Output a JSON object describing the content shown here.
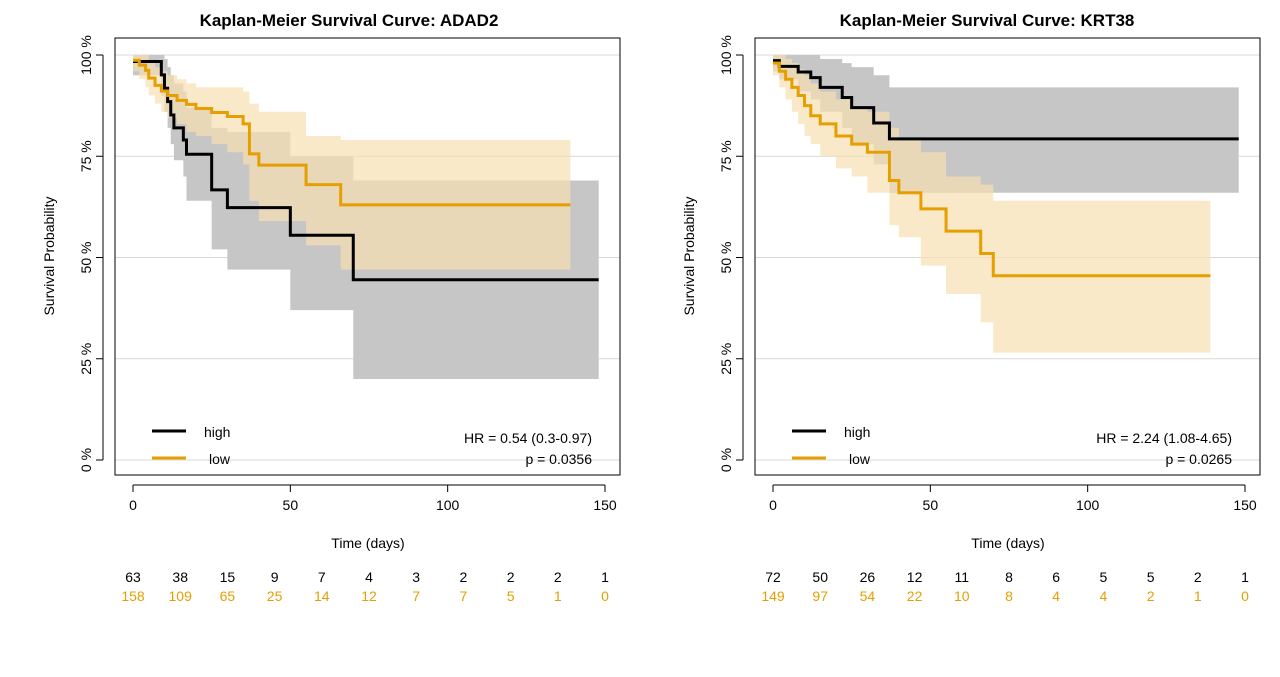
{
  "colors": {
    "high": "#000000",
    "low": "#E69F00",
    "high_ci": "#C6C6C6",
    "low_ci": "#F7E0B0",
    "grid": "#D9D9D9"
  },
  "chart_data": [
    {
      "type": "line",
      "title": "Kaplan-Meier Survival Curve: ADAD2",
      "xlabel": "Time (days)",
      "ylabel": "Survival Probability",
      "xlim": [
        0,
        150
      ],
      "ylim": [
        0,
        1
      ],
      "xticks": [
        "0",
        "50",
        "100",
        "150"
      ],
      "yticks": [
        "0 %",
        "25 %",
        "50 %",
        "75 %",
        "100 %"
      ],
      "legend_position": "bottom-left",
      "legend": [
        "high",
        "low"
      ],
      "hr_text": "HR = 0.54 (0.3-0.97)",
      "p_text": "p = 0.0356",
      "series": [
        {
          "name": "high",
          "x": [
            0,
            6,
            9,
            10,
            11,
            12,
            13,
            16,
            17,
            24,
            25,
            30,
            50,
            70,
            148
          ],
          "y": [
            0.984,
            0.984,
            0.951,
            0.918,
            0.885,
            0.852,
            0.82,
            0.79,
            0.755,
            0.755,
            0.667,
            0.623,
            0.555,
            0.445,
            0.445
          ],
          "ci_lower": [
            0.95,
            0.95,
            0.9,
            0.86,
            0.82,
            0.78,
            0.74,
            0.7,
            0.64,
            0.64,
            0.52,
            0.47,
            0.37,
            0.2,
            0.2
          ],
          "ci_upper": [
            1.0,
            1.0,
            1.0,
            0.99,
            0.97,
            0.95,
            0.93,
            0.91,
            0.87,
            0.87,
            0.82,
            0.81,
            0.75,
            0.69,
            0.69
          ]
        },
        {
          "name": "low",
          "x": [
            0,
            2,
            4,
            5,
            7,
            9,
            11,
            14,
            17,
            20,
            25,
            30,
            35,
            37,
            40,
            55,
            66,
            139
          ],
          "y": [
            0.987,
            0.975,
            0.962,
            0.943,
            0.925,
            0.911,
            0.9,
            0.888,
            0.878,
            0.868,
            0.858,
            0.848,
            0.83,
            0.756,
            0.728,
            0.68,
            0.63,
            0.63
          ],
          "ci_lower": [
            0.96,
            0.94,
            0.92,
            0.9,
            0.88,
            0.86,
            0.845,
            0.83,
            0.81,
            0.8,
            0.78,
            0.76,
            0.73,
            0.64,
            0.59,
            0.53,
            0.47,
            0.47
          ],
          "ci_upper": [
            1.0,
            1.0,
            1.0,
            0.985,
            0.97,
            0.96,
            0.95,
            0.94,
            0.93,
            0.92,
            0.92,
            0.92,
            0.91,
            0.88,
            0.86,
            0.8,
            0.79,
            0.79
          ]
        }
      ],
      "risk_times": [
        0,
        15,
        30,
        45,
        60,
        75,
        90,
        105,
        120,
        135,
        150
      ],
      "at_risk": {
        "high": [
          "63",
          "38",
          "15",
          "9",
          "7",
          "4",
          "3",
          "2",
          "2",
          "2",
          "1"
        ],
        "low": [
          "158",
          "109",
          "65",
          "25",
          "14",
          "12",
          "7",
          "7",
          "5",
          "1",
          "0"
        ]
      }
    },
    {
      "type": "line",
      "title": "Kaplan-Meier Survival Curve: KRT38",
      "xlabel": "Time (days)",
      "ylabel": "Survival Probability",
      "xlim": [
        0,
        150
      ],
      "ylim": [
        0,
        1
      ],
      "xticks": [
        "0",
        "50",
        "100",
        "150"
      ],
      "yticks": [
        "0 %",
        "25 %",
        "50 %",
        "75 %",
        "100 %"
      ],
      "legend_position": "bottom-left",
      "legend": [
        "high",
        "low"
      ],
      "hr_text": "HR = 2.24 (1.08-4.65)",
      "p_text": "p = 0.0265",
      "series": [
        {
          "name": "high",
          "x": [
            0,
            2,
            8,
            12,
            15,
            22,
            25,
            32,
            37,
            148
          ],
          "y": [
            0.986,
            0.972,
            0.958,
            0.944,
            0.92,
            0.895,
            0.87,
            0.832,
            0.793,
            0.793
          ],
          "ci_lower": [
            0.96,
            0.94,
            0.91,
            0.89,
            0.86,
            0.82,
            0.78,
            0.73,
            0.66,
            0.66
          ],
          "ci_upper": [
            1.0,
            1.0,
            1.0,
            1.0,
            0.99,
            0.98,
            0.97,
            0.95,
            0.92,
            0.92
          ]
        },
        {
          "name": "low",
          "x": [
            0,
            2,
            4,
            6,
            8,
            10,
            12,
            15,
            20,
            25,
            30,
            37,
            40,
            47,
            55,
            66,
            70,
            139
          ],
          "y": [
            0.98,
            0.96,
            0.94,
            0.92,
            0.9,
            0.875,
            0.85,
            0.83,
            0.8,
            0.78,
            0.76,
            0.69,
            0.66,
            0.62,
            0.565,
            0.51,
            0.455,
            0.455
          ],
          "ci_lower": [
            0.95,
            0.92,
            0.89,
            0.86,
            0.83,
            0.8,
            0.78,
            0.75,
            0.72,
            0.7,
            0.66,
            0.58,
            0.55,
            0.48,
            0.41,
            0.34,
            0.265,
            0.265
          ],
          "ci_upper": [
            1.0,
            1.0,
            0.99,
            0.98,
            0.965,
            0.95,
            0.93,
            0.91,
            0.89,
            0.87,
            0.86,
            0.82,
            0.79,
            0.76,
            0.7,
            0.68,
            0.64,
            0.64
          ]
        }
      ],
      "risk_times": [
        0,
        15,
        30,
        45,
        60,
        75,
        90,
        105,
        120,
        135,
        150
      ],
      "at_risk": {
        "high": [
          "72",
          "50",
          "26",
          "12",
          "11",
          "8",
          "6",
          "5",
          "5",
          "2",
          "1"
        ],
        "low": [
          "149",
          "97",
          "54",
          "22",
          "10",
          "8",
          "4",
          "4",
          "2",
          "1",
          "0"
        ]
      }
    }
  ]
}
